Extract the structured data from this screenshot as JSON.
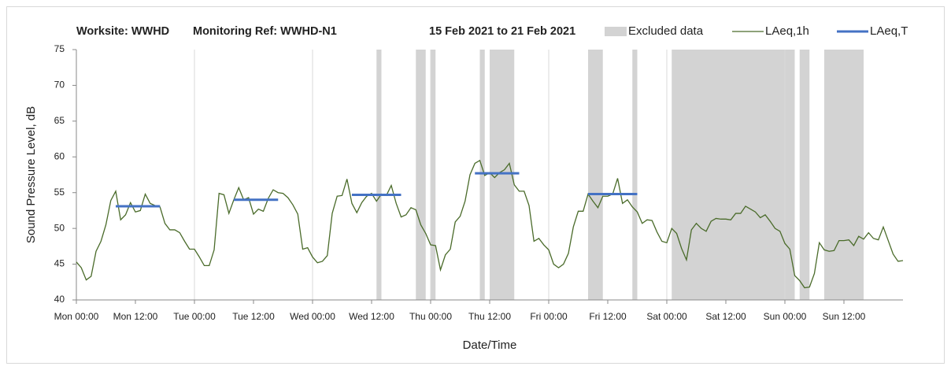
{
  "chart_data": {
    "type": "line",
    "title_parts": [
      "Worksite: WWHD",
      "Monitoring Ref: WWHD-N1",
      "15 Feb 2021 to 21 Feb 2021"
    ],
    "x_label": "Date/Time",
    "y_label": "Sound Pressure Level, dB",
    "xlim": [
      0,
      168
    ],
    "xticks": [
      {
        "value": 0,
        "label": "Mon 00:00"
      },
      {
        "value": 12,
        "label": "Mon 12:00"
      },
      {
        "value": 24,
        "label": "Tue 00:00"
      },
      {
        "value": 36,
        "label": "Tue 12:00"
      },
      {
        "value": 48,
        "label": "Wed 00:00"
      },
      {
        "value": 60,
        "label": "Wed 12:00"
      },
      {
        "value": 72,
        "label": "Thu 00:00"
      },
      {
        "value": 84,
        "label": "Thu 12:00"
      },
      {
        "value": 96,
        "label": "Fri 00:00"
      },
      {
        "value": 108,
        "label": "Fri 12:00"
      },
      {
        "value": 120,
        "label": "Sat 00:00"
      },
      {
        "value": 132,
        "label": "Sat 12:00"
      },
      {
        "value": 144,
        "label": "Sun 00:00"
      },
      {
        "value": 156,
        "label": "Sun 12:00"
      }
    ],
    "ylim": [
      40,
      75
    ],
    "yticks": [
      40,
      45,
      50,
      55,
      60,
      65,
      70,
      75
    ],
    "grid": true,
    "excluded_name": "Excluded data",
    "excluded_color": "#d3d3d3",
    "excluded": [
      [
        61,
        62
      ],
      [
        69,
        71
      ],
      [
        72,
        73
      ],
      [
        82,
        83
      ],
      [
        84,
        89
      ],
      [
        104,
        107
      ],
      [
        113,
        114
      ],
      [
        121,
        146
      ],
      [
        147,
        149
      ],
      [
        152,
        160
      ]
    ],
    "series": [
      {
        "name": "LAeq,1h",
        "color": "#4a6b2a",
        "x": [
          0,
          1,
          2,
          3,
          4,
          5,
          6,
          7,
          8,
          9,
          10,
          11,
          12,
          13,
          14,
          15,
          16,
          17,
          18,
          19,
          20,
          21,
          22,
          23,
          24,
          25,
          26,
          27,
          28,
          29,
          30,
          31,
          32,
          33,
          34,
          35,
          36,
          37,
          38,
          39,
          40,
          41,
          42,
          43,
          44,
          45,
          46,
          47,
          48,
          49,
          50,
          51,
          52,
          53,
          54,
          55,
          56,
          57,
          58,
          59,
          60,
          61,
          62,
          63,
          64,
          65,
          66,
          67,
          68,
          69,
          70,
          71,
          72,
          73,
          74,
          75,
          76,
          77,
          78,
          79,
          80,
          81,
          82,
          83,
          84,
          85,
          86,
          87,
          88,
          89,
          90,
          91,
          92,
          93,
          94,
          95,
          96,
          97,
          98,
          99,
          100,
          101,
          102,
          103,
          104,
          105,
          106,
          107,
          108,
          109,
          110,
          111,
          112,
          113,
          114,
          115,
          116,
          117,
          118,
          119,
          120,
          121,
          122,
          123,
          124,
          125,
          126,
          127,
          128,
          129,
          130,
          131,
          132,
          133,
          134,
          135,
          136,
          137,
          138,
          139,
          140,
          141,
          142,
          143,
          144,
          145,
          146,
          147,
          148,
          149,
          150,
          151,
          152,
          153,
          154,
          155,
          156,
          157,
          158,
          159,
          160,
          161,
          162,
          163,
          164,
          165,
          166,
          167,
          168
        ],
        "values": [
          45.3,
          44.5,
          42.8,
          43.3,
          46.8,
          48.2,
          50.5,
          53.9,
          55.2,
          51.2,
          51.9,
          53.6,
          52.3,
          52.5,
          54.8,
          53.5,
          53.2,
          53.0,
          50.7,
          49.8,
          49.8,
          49.4,
          48.2,
          47.1,
          47.1,
          46.0,
          44.8,
          44.8,
          47.0,
          54.9,
          54.7,
          52.1,
          54.0,
          55.7,
          54.0,
          54.3,
          52.0,
          52.7,
          52.4,
          54.2,
          55.4,
          55.0,
          54.9,
          54.3,
          53.3,
          52.0,
          47.1,
          47.3,
          46.0,
          45.2,
          45.4,
          46.2,
          52.1,
          54.5,
          54.6,
          56.9,
          53.5,
          52.2,
          53.6,
          54.5,
          54.9,
          53.8,
          54.8,
          54.6,
          56.0,
          53.5,
          51.6,
          51.9,
          52.9,
          52.6,
          50.5,
          49.3,
          47.7,
          47.6,
          44.2,
          46.3,
          47.1,
          50.9,
          51.7,
          53.8,
          57.5,
          59.1,
          59.5,
          57.4,
          57.8,
          57.1,
          57.8,
          58.2,
          59.1,
          56.1,
          55.2,
          55.2,
          53.2,
          48.2,
          48.6,
          47.7,
          47.0,
          45.0,
          44.5,
          45.0,
          46.5,
          50.2,
          52.4,
          52.4,
          54.8,
          53.8,
          52.9,
          54.5,
          54.5,
          54.8,
          57.0,
          53.5,
          54.0,
          53.0,
          52.3,
          50.7,
          51.2,
          51.1,
          49.5,
          48.2,
          48.0,
          50.0,
          49.3,
          47.2,
          45.6,
          49.8,
          50.7,
          50.0,
          49.6,
          51.0,
          51.4,
          51.3,
          51.3,
          51.2,
          52.1,
          52.1,
          53.1,
          52.7,
          52.3,
          51.5,
          51.9,
          51.0,
          50.0,
          49.6,
          47.9,
          47.1,
          43.4,
          42.7,
          41.7,
          41.8,
          43.7,
          48.0,
          47.0,
          46.8,
          46.9,
          48.3,
          48.3,
          48.4,
          47.6,
          48.9,
          48.5,
          49.4,
          48.6,
          48.4,
          50.2,
          48.3,
          46.4,
          45.4,
          45.5
        ]
      },
      {
        "name": "LAeq,T",
        "color": "#4472c4",
        "x": [
          8,
          17,
          null,
          32,
          41,
          null,
          56,
          66,
          null,
          81,
          90,
          null,
          104,
          114
        ],
        "values": [
          53.1,
          53.1,
          null,
          54.0,
          54.0,
          null,
          54.7,
          54.7,
          null,
          57.7,
          57.7,
          null,
          54.8,
          54.8
        ]
      }
    ]
  }
}
